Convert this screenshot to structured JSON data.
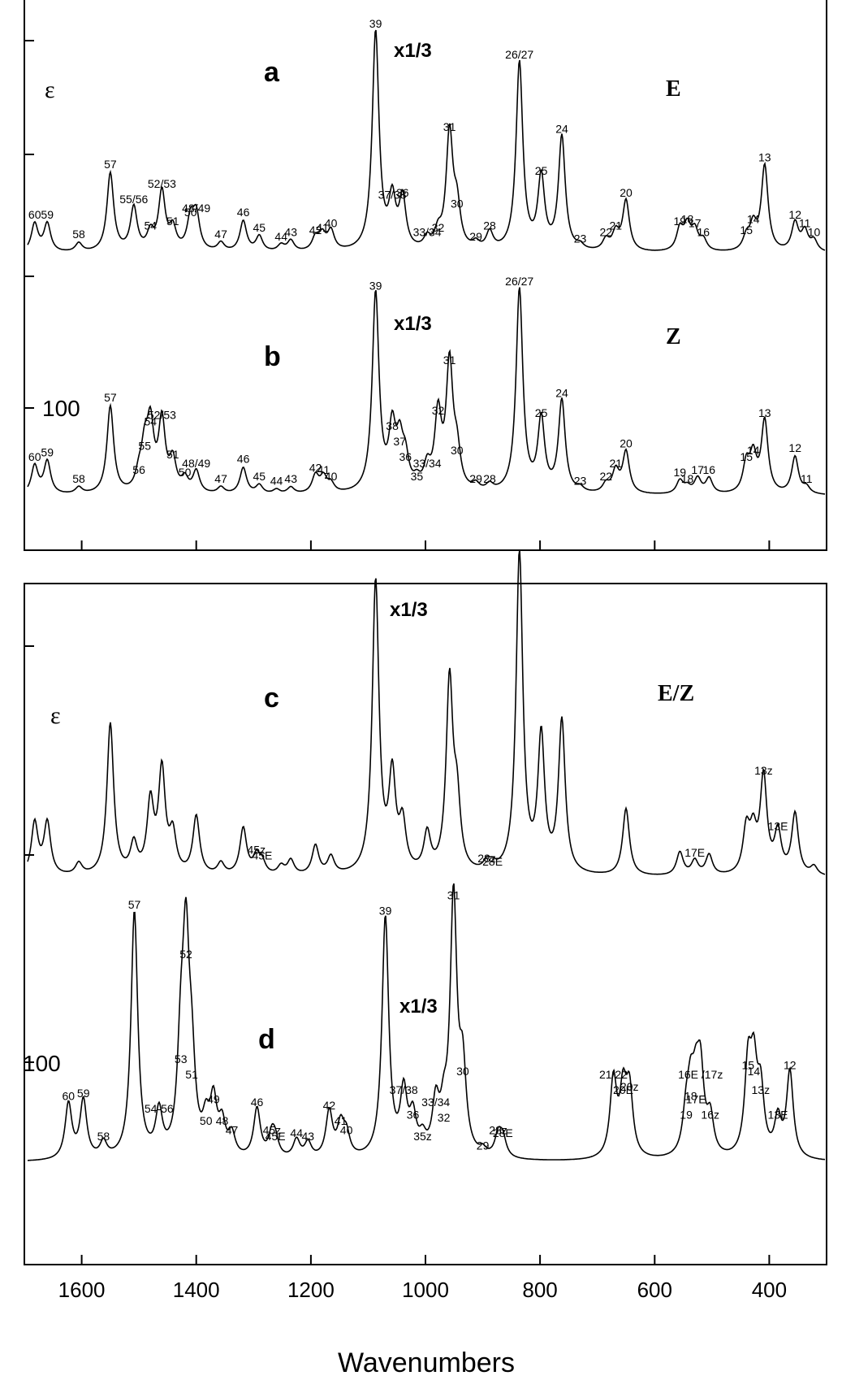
{
  "chart_data": [
    {
      "type": "line",
      "panel": "a",
      "isomer_label": "E",
      "epsilon_label": "ε",
      "scale_label": "x1/3",
      "xlim": [
        1700,
        300
      ],
      "x_reversed": true,
      "peaks": [
        {
          "label": "60",
          "x": 1682,
          "y": 0.13
        },
        {
          "label": "59",
          "x": 1660,
          "y": 0.13
        },
        {
          "label": "58",
          "x": 1605,
          "y": 0.04
        },
        {
          "label": "57",
          "x": 1550,
          "y": 0.36
        },
        {
          "label": "55/56",
          "x": 1509,
          "y": 0.2
        },
        {
          "label": "54",
          "x": 1480,
          "y": 0.08
        },
        {
          "label": "52/53",
          "x": 1460,
          "y": 0.27
        },
        {
          "label": "51",
          "x": 1441,
          "y": 0.1
        },
        {
          "label": "50",
          "x": 1410,
          "y": 0.14
        },
        {
          "label": "48/49",
          "x": 1400,
          "y": 0.16
        },
        {
          "label": "47",
          "x": 1357,
          "y": 0.04
        },
        {
          "label": "46",
          "x": 1318,
          "y": 0.14
        },
        {
          "label": "45",
          "x": 1290,
          "y": 0.07
        },
        {
          "label": "44",
          "x": 1252,
          "y": 0.03
        },
        {
          "label": "43",
          "x": 1235,
          "y": 0.05
        },
        {
          "label": "42",
          "x": 1192,
          "y": 0.06
        },
        {
          "label": "41",
          "x": 1180,
          "y": 0.07
        },
        {
          "label": "40",
          "x": 1165,
          "y": 0.09
        },
        {
          "label": "39",
          "x": 1087,
          "y": 1.0
        },
        {
          "label": "37/38",
          "x": 1058,
          "y": 0.22
        },
        {
          "label": "36",
          "x": 1040,
          "y": 0.23
        },
        {
          "label": "33/34",
          "x": 997,
          "y": 0.05
        },
        {
          "label": "32",
          "x": 978,
          "y": 0.07
        },
        {
          "label": "31",
          "x": 958,
          "y": 0.53
        },
        {
          "label": "30",
          "x": 945,
          "y": 0.18
        },
        {
          "label": "29",
          "x": 912,
          "y": 0.03
        },
        {
          "label": "28",
          "x": 888,
          "y": 0.08
        },
        {
          "label": "26/27",
          "x": 836,
          "y": 0.86
        },
        {
          "label": "25",
          "x": 798,
          "y": 0.33
        },
        {
          "label": "24",
          "x": 762,
          "y": 0.52
        },
        {
          "label": "23",
          "x": 730,
          "y": 0.02
        },
        {
          "label": "22",
          "x": 685,
          "y": 0.05
        },
        {
          "label": "21",
          "x": 668,
          "y": 0.08
        },
        {
          "label": "20",
          "x": 650,
          "y": 0.23
        },
        {
          "label": "19",
          "x": 556,
          "y": 0.1
        },
        {
          "label": "18",
          "x": 543,
          "y": 0.11
        },
        {
          "label": "17",
          "x": 530,
          "y": 0.09
        },
        {
          "label": "16",
          "x": 515,
          "y": 0.05
        },
        {
          "label": "15",
          "x": 440,
          "y": 0.06
        },
        {
          "label": "14",
          "x": 428,
          "y": 0.11
        },
        {
          "label": "13",
          "x": 408,
          "y": 0.39
        },
        {
          "label": "12",
          "x": 355,
          "y": 0.13
        },
        {
          "label": "11",
          "x": 338,
          "y": 0.09
        },
        {
          "label": "10",
          "x": 322,
          "y": 0.05
        }
      ]
    },
    {
      "type": "line",
      "panel": "b",
      "isomer_label": "Z",
      "scale_label": "x1/3",
      "y_tick_label": "100",
      "xlim": [
        1700,
        300
      ],
      "x_reversed": true,
      "peaks": [
        {
          "label": "60",
          "x": 1682,
          "y": 0.13
        },
        {
          "label": "59",
          "x": 1660,
          "y": 0.15
        },
        {
          "label": "58",
          "x": 1605,
          "y": 0.03
        },
        {
          "label": "57",
          "x": 1550,
          "y": 0.4
        },
        {
          "label": "56",
          "x": 1500,
          "y": 0.07
        },
        {
          "label": "55",
          "x": 1490,
          "y": 0.18
        },
        {
          "label": "54",
          "x": 1480,
          "y": 0.29
        },
        {
          "label": "52/53",
          "x": 1460,
          "y": 0.32
        },
        {
          "label": "51",
          "x": 1441,
          "y": 0.14
        },
        {
          "label": "50",
          "x": 1420,
          "y": 0.06
        },
        {
          "label": "48/49",
          "x": 1400,
          "y": 0.1
        },
        {
          "label": "47",
          "x": 1357,
          "y": 0.03
        },
        {
          "label": "46",
          "x": 1318,
          "y": 0.12
        },
        {
          "label": "45",
          "x": 1290,
          "y": 0.04
        },
        {
          "label": "44",
          "x": 1260,
          "y": 0.02
        },
        {
          "label": "43",
          "x": 1235,
          "y": 0.03
        },
        {
          "label": "42",
          "x": 1192,
          "y": 0.08
        },
        {
          "label": "41",
          "x": 1178,
          "y": 0.07
        },
        {
          "label": "40",
          "x": 1165,
          "y": 0.04
        },
        {
          "label": "39",
          "x": 1087,
          "y": 0.91
        },
        {
          "label": "38",
          "x": 1058,
          "y": 0.27
        },
        {
          "label": "37",
          "x": 1045,
          "y": 0.2
        },
        {
          "label": "36",
          "x": 1035,
          "y": 0.13
        },
        {
          "label": "35",
          "x": 1015,
          "y": 0.04
        },
        {
          "label": "33/34",
          "x": 997,
          "y": 0.1
        },
        {
          "label": "32",
          "x": 978,
          "y": 0.34
        },
        {
          "label": "31",
          "x": 958,
          "y": 0.57
        },
        {
          "label": "30",
          "x": 945,
          "y": 0.16
        },
        {
          "label": "29",
          "x": 912,
          "y": 0.03
        },
        {
          "label": "28",
          "x": 888,
          "y": 0.03
        },
        {
          "label": "26/27",
          "x": 836,
          "y": 0.93
        },
        {
          "label": "25",
          "x": 798,
          "y": 0.33
        },
        {
          "label": "24",
          "x": 762,
          "y": 0.42
        },
        {
          "label": "23",
          "x": 730,
          "y": 0.02
        },
        {
          "label": "22",
          "x": 685,
          "y": 0.04
        },
        {
          "label": "21",
          "x": 668,
          "y": 0.1
        },
        {
          "label": "20",
          "x": 650,
          "y": 0.19
        },
        {
          "label": "19",
          "x": 556,
          "y": 0.06
        },
        {
          "label": "18",
          "x": 543,
          "y": 0.03
        },
        {
          "label": "17",
          "x": 525,
          "y": 0.07
        },
        {
          "label": "16",
          "x": 505,
          "y": 0.07
        },
        {
          "label": "15",
          "x": 440,
          "y": 0.13
        },
        {
          "label": "14",
          "x": 428,
          "y": 0.16
        },
        {
          "label": "13",
          "x": 408,
          "y": 0.33
        },
        {
          "label": "12",
          "x": 355,
          "y": 0.17
        },
        {
          "label": "11",
          "x": 335,
          "y": 0.03
        }
      ]
    },
    {
      "type": "line",
      "panel": "c",
      "isomer_label": "E/Z",
      "epsilon_label": "ε",
      "scale_label": "x1/3",
      "xlim": [
        1700,
        300
      ],
      "x_reversed": true,
      "peaks": [
        {
          "label": "",
          "x": 1682,
          "y": 0.18
        },
        {
          "label": "",
          "x": 1660,
          "y": 0.18
        },
        {
          "label": "",
          "x": 1605,
          "y": 0.04
        },
        {
          "label": "",
          "x": 1550,
          "y": 0.52
        },
        {
          "label": "",
          "x": 1509,
          "y": 0.1
        },
        {
          "label": "",
          "x": 1480,
          "y": 0.24
        },
        {
          "label": "",
          "x": 1460,
          "y": 0.35
        },
        {
          "label": "",
          "x": 1441,
          "y": 0.13
        },
        {
          "label": "",
          "x": 1400,
          "y": 0.2
        },
        {
          "label": "",
          "x": 1357,
          "y": 0.04
        },
        {
          "label": "",
          "x": 1318,
          "y": 0.16
        },
        {
          "label": "45z",
          "x": 1295,
          "y": 0.06
        },
        {
          "label": "45E",
          "x": 1285,
          "y": 0.04
        },
        {
          "label": "",
          "x": 1252,
          "y": 0.03
        },
        {
          "label": "",
          "x": 1235,
          "y": 0.05
        },
        {
          "label": "",
          "x": 1192,
          "y": 0.1
        },
        {
          "label": "",
          "x": 1165,
          "y": 0.06
        },
        {
          "label": "",
          "x": 1087,
          "y": 1.0
        },
        {
          "label": "",
          "x": 1058,
          "y": 0.32
        },
        {
          "label": "",
          "x": 1040,
          "y": 0.16
        },
        {
          "label": "",
          "x": 997,
          "y": 0.13
        },
        {
          "label": "",
          "x": 958,
          "y": 0.65
        },
        {
          "label": "",
          "x": 945,
          "y": 0.22
        },
        {
          "label": "28z",
          "x": 893,
          "y": 0.03
        },
        {
          "label": "28E",
          "x": 883,
          "y": 0.02
        },
        {
          "label": "",
          "x": 836,
          "y": 1.1
        },
        {
          "label": "",
          "x": 798,
          "y": 0.46
        },
        {
          "label": "",
          "x": 762,
          "y": 0.52
        },
        {
          "label": "",
          "x": 650,
          "y": 0.23
        },
        {
          "label": "",
          "x": 556,
          "y": 0.08
        },
        {
          "label": "17E",
          "x": 530,
          "y": 0.05
        },
        {
          "label": "",
          "x": 505,
          "y": 0.07
        },
        {
          "label": "",
          "x": 440,
          "y": 0.15
        },
        {
          "label": "",
          "x": 428,
          "y": 0.13
        },
        {
          "label": "13z",
          "x": 410,
          "y": 0.33
        },
        {
          "label": "13E",
          "x": 385,
          "y": 0.14
        },
        {
          "label": "",
          "x": 355,
          "y": 0.21
        },
        {
          "label": "",
          "x": 322,
          "y": 0.03
        }
      ]
    },
    {
      "type": "line",
      "panel": "d",
      "scale_label": "x1/3",
      "y_tick_label": "100",
      "xlabel": "Wavenumbers",
      "xlim": [
        1700,
        300
      ],
      "x_reversed": true,
      "x_ticks": [
        1600,
        1400,
        1200,
        1000,
        800,
        600,
        400
      ],
      "peaks": [
        {
          "label": "60",
          "x": 1623,
          "y": 0.18
        },
        {
          "label": "59",
          "x": 1597,
          "y": 0.19
        },
        {
          "label": "58",
          "x": 1562,
          "y": 0.05
        },
        {
          "label": "57",
          "x": 1508,
          "y": 0.8
        },
        {
          "label": "54-56",
          "x": 1465,
          "y": 0.14
        },
        {
          "label": "53",
          "x": 1427,
          "y": 0.3
        },
        {
          "label": "52",
          "x": 1418,
          "y": 0.64
        },
        {
          "label": "51",
          "x": 1408,
          "y": 0.25
        },
        {
          "label": "50",
          "x": 1383,
          "y": 0.1
        },
        {
          "label": "49",
          "x": 1370,
          "y": 0.17
        },
        {
          "label": "48",
          "x": 1355,
          "y": 0.1
        },
        {
          "label": "47",
          "x": 1338,
          "y": 0.07
        },
        {
          "label": "46",
          "x": 1294,
          "y": 0.16
        },
        {
          "label": "45z",
          "x": 1268,
          "y": 0.07
        },
        {
          "label": "45E",
          "x": 1262,
          "y": 0.05
        },
        {
          "label": "44",
          "x": 1225,
          "y": 0.06
        },
        {
          "label": "43",
          "x": 1205,
          "y": 0.05
        },
        {
          "label": "42",
          "x": 1168,
          "y": 0.15
        },
        {
          "label": "41",
          "x": 1148,
          "y": 0.1
        },
        {
          "label": "40",
          "x": 1138,
          "y": 0.07
        },
        {
          "label": "39",
          "x": 1070,
          "y": 0.78
        },
        {
          "label": "37/38",
          "x": 1038,
          "y": 0.2
        },
        {
          "label": "36",
          "x": 1022,
          "y": 0.12
        },
        {
          "label": "35z",
          "x": 1005,
          "y": 0.05
        },
        {
          "label": "33/34",
          "x": 982,
          "y": 0.16
        },
        {
          "label": "32",
          "x": 968,
          "y": 0.11
        },
        {
          "label": "31",
          "x": 951,
          "y": 0.83
        },
        {
          "label": "30",
          "x": 935,
          "y": 0.26
        },
        {
          "label": "29",
          "x": 900,
          "y": 0.02
        },
        {
          "label": "28z",
          "x": 873,
          "y": 0.07
        },
        {
          "label": "28E",
          "x": 865,
          "y": 0.06
        },
        {
          "label": "21/22",
          "x": 672,
          "y": 0.25
        },
        {
          "label": "20E",
          "x": 655,
          "y": 0.2
        },
        {
          "label": "20z",
          "x": 644,
          "y": 0.21
        },
        {
          "label": "19",
          "x": 545,
          "y": 0.12
        },
        {
          "label": "18",
          "x": 537,
          "y": 0.18
        },
        {
          "label": "17E",
          "x": 528,
          "y": 0.17
        },
        {
          "label": "16E /17z",
          "x": 520,
          "y": 0.25
        },
        {
          "label": "16z",
          "x": 503,
          "y": 0.12
        },
        {
          "label": "15",
          "x": 437,
          "y": 0.28
        },
        {
          "label": "14",
          "x": 427,
          "y": 0.26
        },
        {
          "label": "13z",
          "x": 415,
          "y": 0.2
        },
        {
          "label": "13E",
          "x": 385,
          "y": 0.12
        },
        {
          "label": "12",
          "x": 364,
          "y": 0.28
        }
      ]
    }
  ]
}
